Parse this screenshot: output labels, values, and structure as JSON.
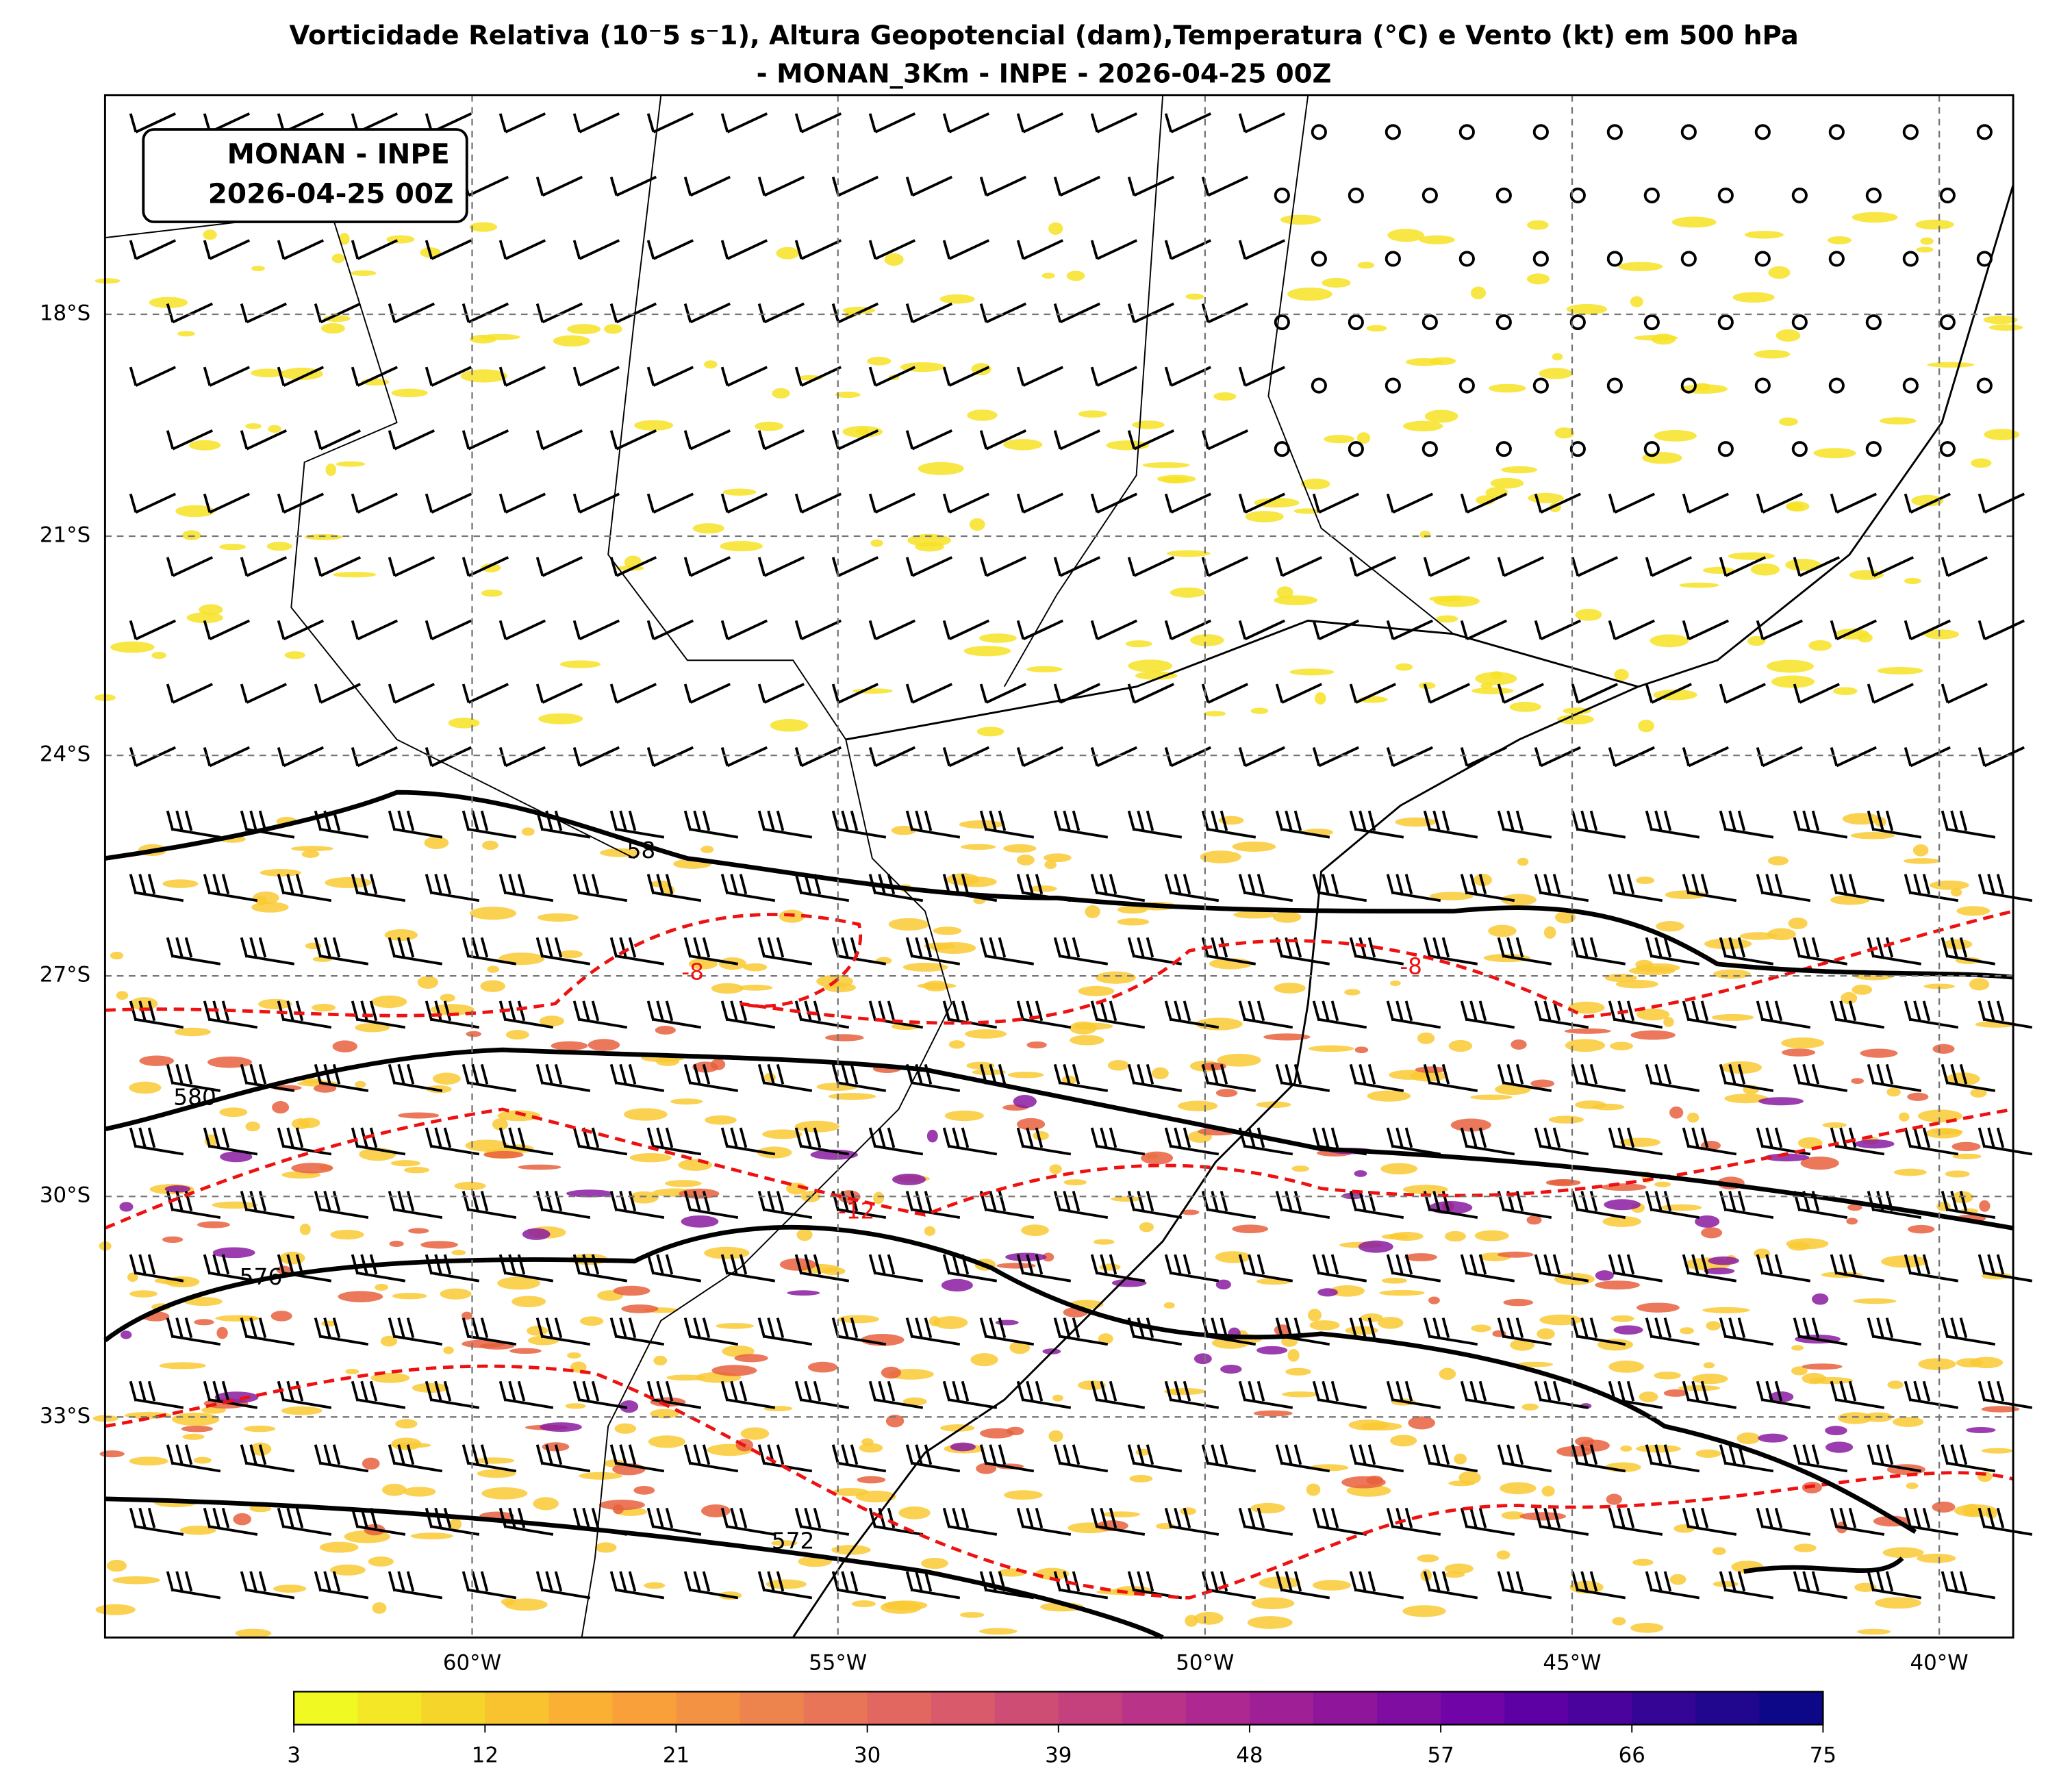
{
  "title": [
    "Vorticidade Relativa (10⁻5 s⁻1), Altura Geopotencial (dam),Temperatura (°C) e Vento (kt) em 500 hPa",
    "- MONAN_3Km - INPE - 2026-04-25 00Z"
  ],
  "info_box": [
    "MONAN - INPE",
    "2026-04-25 00Z"
  ],
  "map": {
    "lat_labels": [
      "18°S",
      "21°S",
      "24°S",
      "27°S",
      "30°S",
      "33°S"
    ],
    "lon_labels": [
      "60°W",
      "55°W",
      "50°W",
      "45°W",
      "40°W"
    ],
    "height_contour_labels": [
      "58",
      "580",
      "576",
      "572"
    ],
    "temperature_contour_labels": [
      "-8",
      "-8",
      "-12"
    ]
  },
  "colorbar": {
    "ticks": [
      3,
      12,
      21,
      30,
      39,
      48,
      57,
      66,
      75
    ]
  }
}
